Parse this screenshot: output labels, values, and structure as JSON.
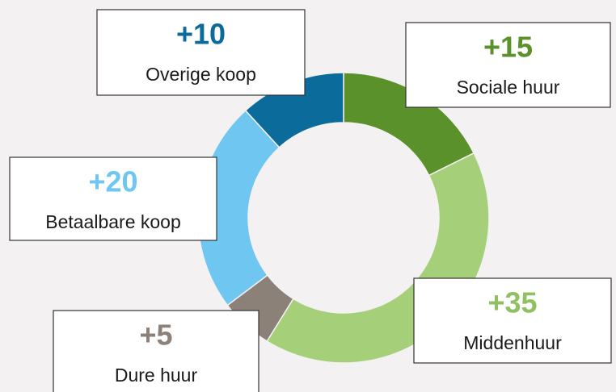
{
  "chart_data": {
    "type": "donut",
    "categories": [
      "Sociale huur",
      "Middenhuur",
      "Dure huur",
      "Betaalbare koop",
      "Overige koop"
    ],
    "values": [
      15,
      35,
      5,
      20,
      10
    ],
    "value_labels": [
      "+15",
      "+35",
      "+5",
      "+20",
      "+10"
    ],
    "colors": [
      "#5b912b",
      "#a6cf79",
      "#8b8179",
      "#6fc7f1",
      "#0b6b9b"
    ],
    "label_colors": [
      "#5b912b",
      "#8fc062",
      "#8b8179",
      "#6fc7f1",
      "#0b6b9b"
    ]
  }
}
